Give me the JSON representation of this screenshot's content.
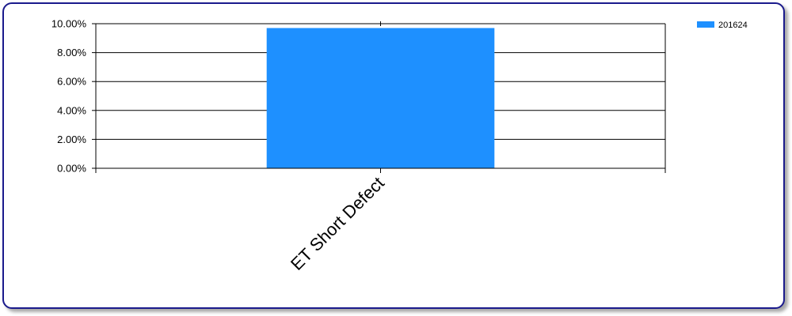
{
  "chart_data": {
    "type": "bar",
    "categories": [
      "ET Short Defect"
    ],
    "series": [
      {
        "name": "201624",
        "values": [
          9.7
        ],
        "color": "#1e90ff"
      }
    ],
    "y_ticks": [
      "0.00%",
      "2.00%",
      "4.00%",
      "6.00%",
      "8.00%",
      "10.00%"
    ],
    "ylim": [
      0,
      10
    ],
    "y_unit": "percent",
    "grid": true,
    "legend_position": "top-right"
  }
}
